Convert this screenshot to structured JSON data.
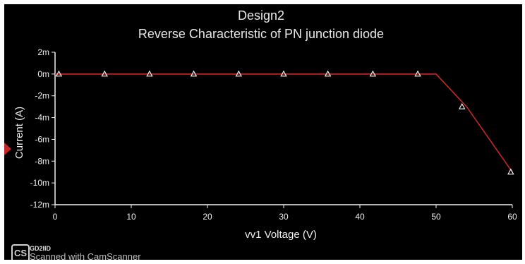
{
  "chart_data": {
    "type": "line",
    "title": "Design2",
    "subtitle": "Reverse Characteristic of PN junction diode",
    "xlabel": "vv1 Voltage (V)",
    "ylabel": "Current (A)",
    "xlim": [
      0,
      60
    ],
    "ylim": [
      -12,
      2
    ],
    "x_ticks": [
      "0",
      "10",
      "20",
      "30",
      "40",
      "50",
      "60"
    ],
    "y_ticks": [
      "2m",
      "0m",
      "-2m",
      "-4m",
      "-6m",
      "-8m",
      "-10m",
      "-12m"
    ],
    "x_tick_values": [
      0,
      10,
      20,
      30,
      40,
      50,
      60
    ],
    "y_tick_values": [
      2,
      0,
      -2,
      -4,
      -6,
      -8,
      -10,
      -12
    ],
    "series": [
      {
        "color": "#c62828",
        "marker": "triangle",
        "marker_color": "#ffffff",
        "x": [
          0,
          6,
          12,
          18,
          24,
          30,
          36,
          42,
          48,
          50,
          54,
          60
        ],
        "y": [
          0,
          0,
          0,
          0,
          0,
          0,
          0,
          0,
          0,
          0,
          -3,
          -9
        ]
      }
    ],
    "marker_x": [
      0.5,
      6.5,
      12.4,
      18.2,
      24.1,
      30,
      35.8,
      41.7,
      47.6,
      53.4,
      59.8
    ],
    "marker_y": [
      0,
      0,
      0,
      0,
      0,
      0,
      0,
      0,
      0,
      -3,
      -9
    ],
    "grid": false,
    "legend": "none"
  },
  "watermark": {
    "badge": "CS",
    "label": "GD2IID",
    "text": "Scanned with CamScanner"
  },
  "colors": {
    "background": "#000000",
    "line": "#c62828",
    "marker": "#ffffff",
    "axis": "#f0f0f0"
  }
}
